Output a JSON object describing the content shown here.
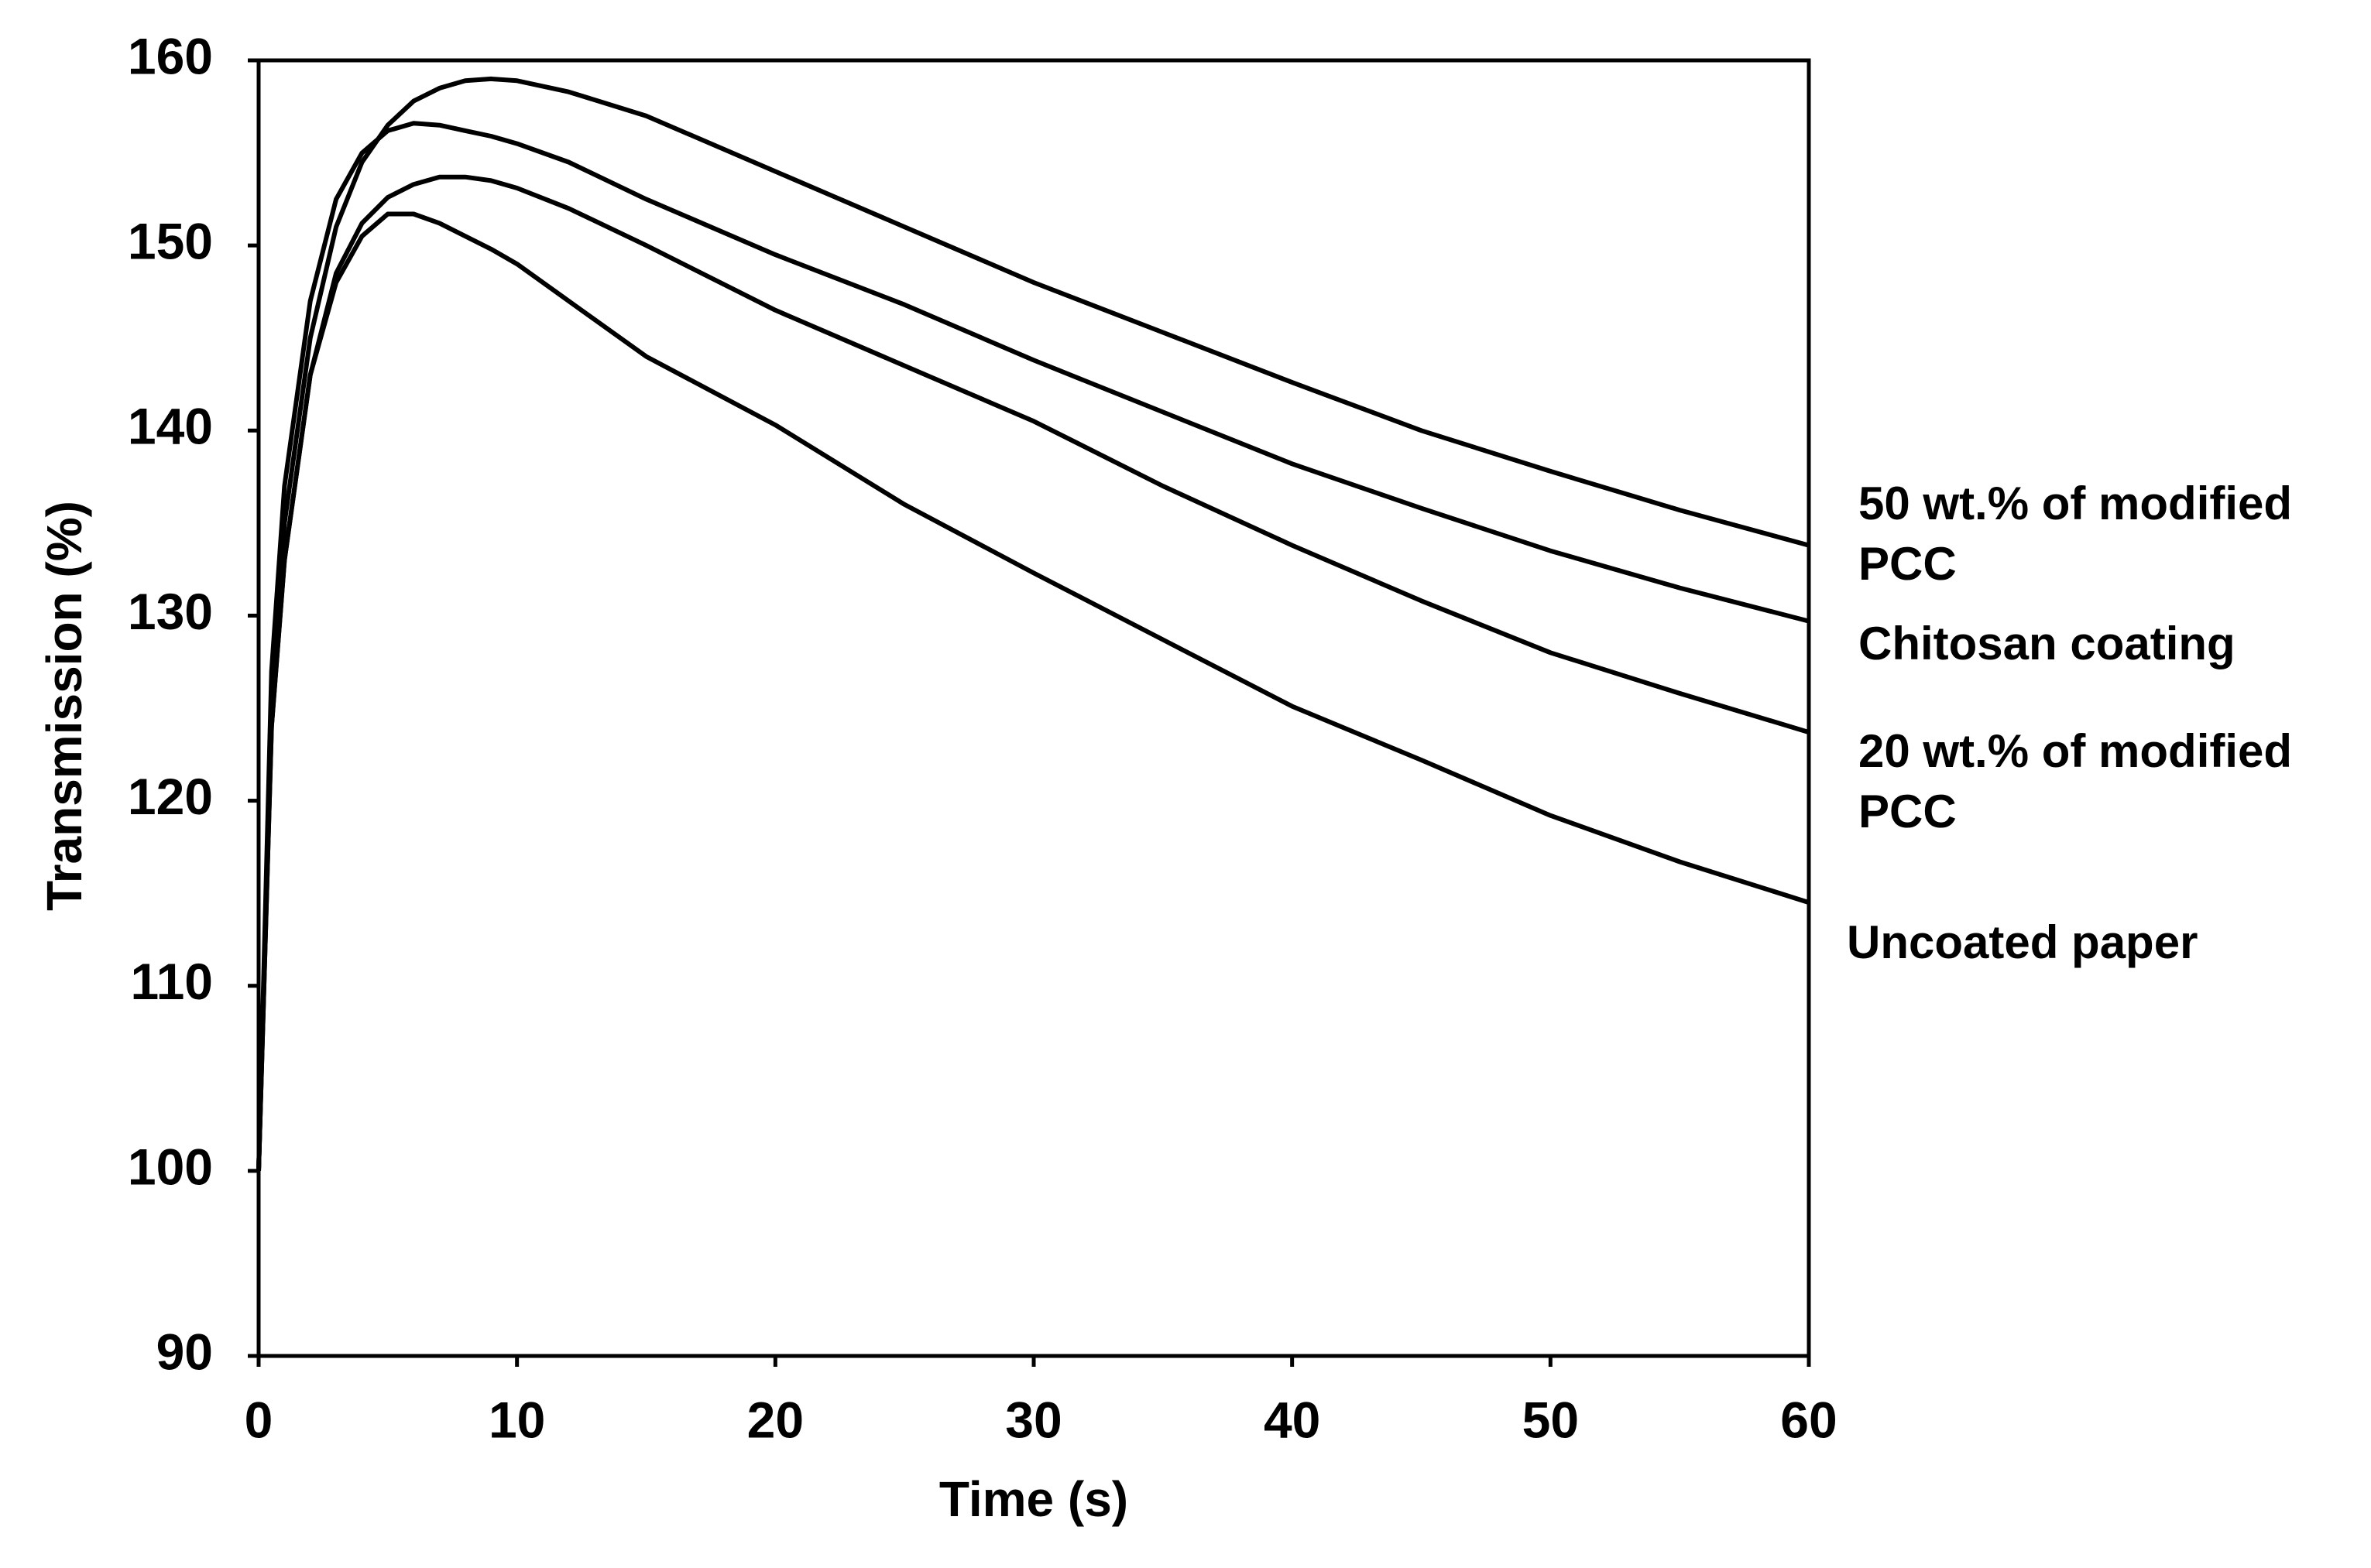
{
  "chart_data": {
    "type": "line",
    "x_label": "Time (s)",
    "y_label": "Transmission (%)",
    "x": [
      0,
      0.5,
      1,
      2,
      3,
      4,
      5,
      6,
      7,
      8,
      9,
      10,
      12,
      15,
      20,
      25,
      30,
      35,
      40,
      45,
      50,
      55,
      60
    ],
    "series": [
      {
        "name": "50 wt.% of modified PCC",
        "color": "#000000",
        "values": [
          100,
          125,
          135,
          145,
          151,
          154.5,
          156.5,
          157.8,
          158.5,
          158.9,
          159,
          158.9,
          158.3,
          157,
          154,
          151,
          148,
          145.3,
          142.6,
          140,
          137.8,
          135.7,
          133.8
        ]
      },
      {
        "name": "Chitosan coating",
        "color": "#000000",
        "values": [
          100,
          127,
          137,
          147,
          152.5,
          155,
          156.2,
          156.6,
          156.5,
          156.2,
          155.9,
          155.5,
          154.5,
          152.5,
          149.5,
          146.8,
          143.8,
          141,
          138.2,
          135.8,
          133.5,
          131.5,
          129.7
        ]
      },
      {
        "name": "20 wt.% of modified PCC",
        "color": "#000000",
        "values": [
          100,
          124,
          133,
          143,
          148.5,
          151.2,
          152.6,
          153.3,
          153.7,
          153.7,
          153.5,
          153.1,
          152,
          150,
          146.5,
          143.5,
          140.5,
          137,
          133.8,
          130.8,
          128,
          125.8,
          123.7
        ]
      },
      {
        "name": "Uncoated paper",
        "color": "#000000",
        "values": [
          100,
          124,
          133,
          143,
          148,
          150.5,
          151.7,
          151.7,
          151.2,
          150.5,
          149.8,
          149,
          147,
          144,
          140.3,
          136,
          132.3,
          128.7,
          125.1,
          122.2,
          119.2,
          116.7,
          114.5
        ]
      }
    ],
    "xlim": [
      0,
      60
    ],
    "xticks": [
      0,
      10,
      20,
      30,
      40,
      50,
      60
    ],
    "ylim": [
      90,
      160
    ],
    "yticks": [
      90,
      100,
      110,
      120,
      130,
      140,
      150,
      160
    ],
    "grid": false,
    "legend": "end-labels"
  }
}
